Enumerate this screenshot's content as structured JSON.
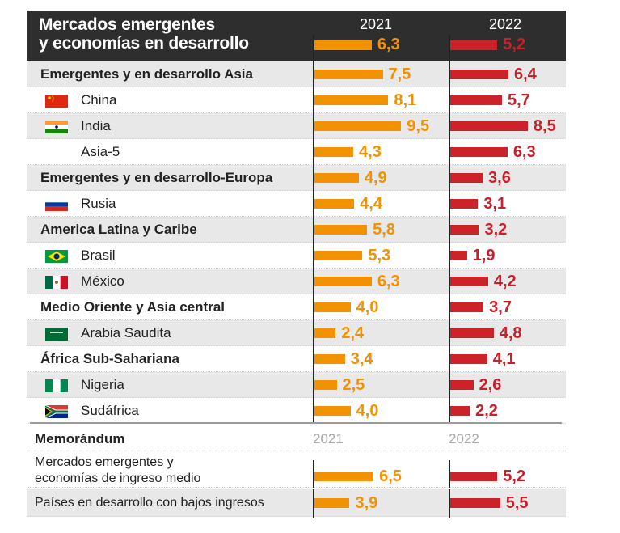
{
  "header": {
    "title_line1": "Mercados emergentes",
    "title_line2": "y economías en desarrollo",
    "year1": "2021",
    "year2": "2022",
    "value_2021": "6,3",
    "value_2022": "5,2"
  },
  "colors": {
    "year_2021": "#f39200",
    "year_2022": "#cc2229",
    "header_bg": "#2e2e2e",
    "row_alt_bg": "#e8e8e8"
  },
  "rows": [
    {
      "label": "Emergentes y en desarrollo Asia",
      "type": "group",
      "flag": "",
      "v2021": "7,5",
      "v2022": "6,4"
    },
    {
      "label": "China",
      "type": "country",
      "flag": "china-flag",
      "v2021": "8,1",
      "v2022": "5,7"
    },
    {
      "label": "India",
      "type": "country",
      "flag": "india-flag",
      "v2021": "9,5",
      "v2022": "8,5"
    },
    {
      "label": "Asia-5",
      "type": "country",
      "flag": "",
      "v2021": "4,3",
      "v2022": "6,3"
    },
    {
      "label": "Emergentes y en desarrollo-Europa",
      "type": "group",
      "flag": "",
      "v2021": "4,9",
      "v2022": "3,6"
    },
    {
      "label": "Rusia",
      "type": "country",
      "flag": "russia-flag",
      "v2021": "4,4",
      "v2022": "3,1"
    },
    {
      "label": "America Latina y Caribe",
      "type": "group",
      "flag": "",
      "v2021": "5,8",
      "v2022": "3,2"
    },
    {
      "label": "Brasil",
      "type": "country",
      "flag": "brazil-flag",
      "v2021": "5,3",
      "v2022": "1,9"
    },
    {
      "label": "México",
      "type": "country",
      "flag": "mexico-flag",
      "v2021": "6,3",
      "v2022": "4,2"
    },
    {
      "label": "Medio Oriente y Asia central",
      "type": "group",
      "flag": "",
      "v2021": "4,0",
      "v2022": "3,7"
    },
    {
      "label": "Arabia Saudita",
      "type": "country",
      "flag": "saudi-arabia-flag",
      "v2021": "2,4",
      "v2022": "4,8"
    },
    {
      "label": "África Sub-Sahariana",
      "type": "group",
      "flag": "",
      "v2021": "3,4",
      "v2022": "4,1"
    },
    {
      "label": "Nigeria",
      "type": "country",
      "flag": "nigeria-flag",
      "v2021": "2,5",
      "v2022": "2,6"
    },
    {
      "label": "Sudáfrica",
      "type": "country",
      "flag": "south-africa-flag",
      "v2021": "4,0",
      "v2022": "2,2"
    }
  ],
  "memo": {
    "title": "Memorándum",
    "year1": "2021",
    "year2": "2022",
    "rows": [
      {
        "label_line1": "Mercados emergentes y",
        "label_line2": "economías de ingreso medio",
        "v2021": "6,5",
        "v2022": "5,2"
      },
      {
        "label_line1": "Países en desarrollo con bajos ingresos",
        "label_line2": "",
        "v2021": "3,9",
        "v2022": "5,5"
      }
    ]
  },
  "chart_data": {
    "type": "bar",
    "orientation": "horizontal",
    "title": "Mercados emergentes y economías en desarrollo",
    "xlabel": "",
    "ylabel": "",
    "categories": [
      "Mercados emergentes y economías en desarrollo",
      "Emergentes y en desarrollo Asia",
      "China",
      "India",
      "Asia-5",
      "Emergentes y en desarrollo-Europa",
      "Rusia",
      "America Latina y Caribe",
      "Brasil",
      "México",
      "Medio Oriente y Asia central",
      "Arabia Saudita",
      "África Sub-Sahariana",
      "Nigeria",
      "Sudáfrica",
      "Mercados emergentes y economías de ingreso medio",
      "Países en desarrollo con bajos ingresos"
    ],
    "series": [
      {
        "name": "2021",
        "color": "#f39200",
        "values": [
          6.3,
          7.5,
          8.1,
          9.5,
          4.3,
          4.9,
          4.4,
          5.8,
          5.3,
          6.3,
          4.0,
          2.4,
          3.4,
          2.5,
          4.0,
          6.5,
          3.9
        ]
      },
      {
        "name": "2022",
        "color": "#cc2229",
        "values": [
          5.2,
          6.4,
          5.7,
          8.5,
          6.3,
          3.6,
          3.1,
          3.2,
          1.9,
          4.2,
          3.7,
          4.8,
          4.1,
          2.6,
          2.2,
          5.2,
          5.5
        ]
      }
    ],
    "xlim": [
      0,
      10
    ],
    "grid": false,
    "legend": "column headers at top",
    "data_labels": true,
    "sections": [
      "main",
      "Memorándum"
    ]
  }
}
